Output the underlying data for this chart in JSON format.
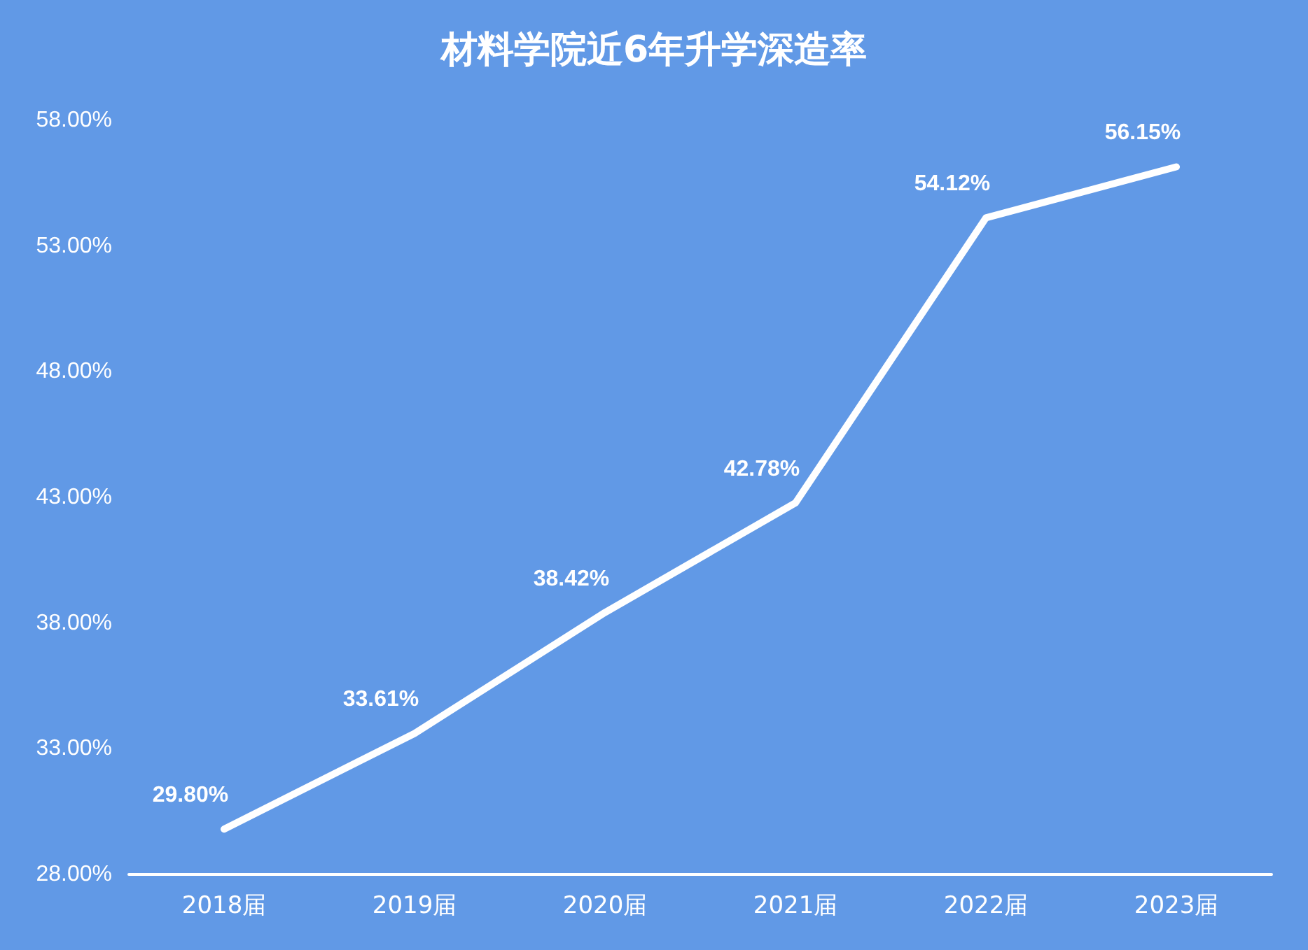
{
  "chart_data": {
    "type": "line",
    "title": "材料学院近6年升学深造率",
    "categories": [
      "2018届",
      "2019届",
      "2020届",
      "2021届",
      "2022届",
      "2023届"
    ],
    "series": [
      {
        "color": "#ffffff",
        "values": [
          29.8,
          33.61,
          38.42,
          42.78,
          54.12,
          56.15
        ],
        "value_labels": [
          "29.80%",
          "33.61%",
          "38.42%",
          "42.78%",
          "54.12%",
          "56.15%"
        ]
      }
    ],
    "ylim": [
      28,
      58
    ],
    "yticks": [
      {
        "value": 28,
        "label": "28.00%"
      },
      {
        "value": 33,
        "label": "33.00%"
      },
      {
        "value": 38,
        "label": "38.00%"
      },
      {
        "value": 43,
        "label": "43.00%"
      },
      {
        "value": 48,
        "label": "48.00%"
      },
      {
        "value": 53,
        "label": "53.00%"
      },
      {
        "value": 58,
        "label": "58.00%"
      }
    ],
    "grid": false,
    "marker": "none",
    "line_style": "solid"
  }
}
